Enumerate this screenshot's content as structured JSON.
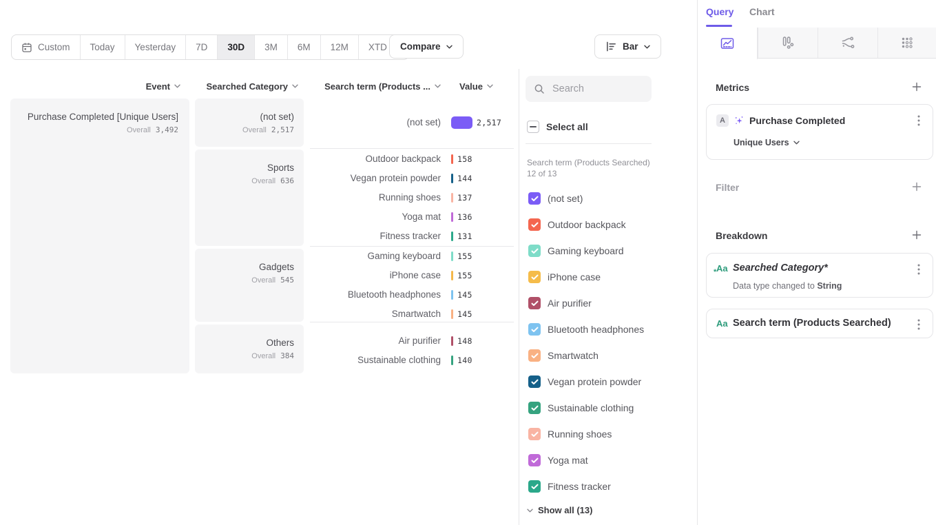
{
  "colors": {
    "accent": "#6e5be8",
    "panel_border": "#e5e5e8",
    "cell_bg": "#f5f5f6"
  },
  "toolbar": {
    "date_ranges": [
      "Custom",
      "Today",
      "Yesterday",
      "7D",
      "30D",
      "3M",
      "6M",
      "12M",
      "XTD"
    ],
    "selected_range": "30D",
    "compare_label": "Compare",
    "chart_type_label": "Bar"
  },
  "table": {
    "columns": [
      "Event",
      "Searched Category",
      "Search term (Products ...",
      "Value"
    ],
    "overall_label": "Overall",
    "event": {
      "name": "Purchase Completed [Unique Users]",
      "overall": "3,492"
    },
    "groups": [
      {
        "name": "(not set)",
        "overall": "2,517",
        "rows": [
          {
            "term": "(not set)",
            "value": "2,517",
            "color": "#7b5cf6",
            "wide": true
          }
        ]
      },
      {
        "name": "Sports",
        "overall": "636",
        "rows": [
          {
            "term": "Outdoor backpack",
            "value": "158",
            "color": "#f4664f"
          },
          {
            "term": "Vegan protein powder",
            "value": "144",
            "color": "#156089"
          },
          {
            "term": "Running shoes",
            "value": "137",
            "color": "#f9b4a3"
          },
          {
            "term": "Yoga mat",
            "value": "136",
            "color": "#c06ad8"
          },
          {
            "term": "Fitness tracker",
            "value": "131",
            "color": "#2ba88a"
          }
        ]
      },
      {
        "name": "Gadgets",
        "overall": "545",
        "rows": [
          {
            "term": "Gaming keyboard",
            "value": "155",
            "color": "#7edcc8"
          },
          {
            "term": "iPhone case",
            "value": "155",
            "color": "#f5b84a"
          },
          {
            "term": "Bluetooth headphones",
            "value": "145",
            "color": "#7ec3f0"
          },
          {
            "term": "Smartwatch",
            "value": "145",
            "color": "#f9b183"
          }
        ]
      },
      {
        "name": "Others",
        "overall": "384",
        "rows": [
          {
            "term": "Air purifier",
            "value": "148",
            "color": "#b05068"
          },
          {
            "term": "Sustainable clothing",
            "value": "140",
            "color": "#35a37f"
          }
        ]
      }
    ]
  },
  "filter_panel": {
    "search_placeholder": "Search",
    "select_all_label": "Select all",
    "group_label": "Search term (Products Searched) 12 of 13",
    "items": [
      {
        "label": "(not set)",
        "color": "#7b5cf6"
      },
      {
        "label": "Outdoor backpack",
        "color": "#f4664f"
      },
      {
        "label": "Gaming keyboard",
        "color": "#7edcc8"
      },
      {
        "label": "iPhone case",
        "color": "#f5bc4a"
      },
      {
        "label": "Air purifier",
        "color": "#b05068"
      },
      {
        "label": "Bluetooth headphones",
        "color": "#7ec3f0"
      },
      {
        "label": "Smartwatch",
        "color": "#f9b183"
      },
      {
        "label": "Vegan protein powder",
        "color": "#156089"
      },
      {
        "label": "Sustainable clothing",
        "color": "#35a37f"
      },
      {
        "label": "Running shoes",
        "color": "#f9b4a3"
      },
      {
        "label": "Yoga mat",
        "color": "#c06ad8"
      },
      {
        "label": "Fitness tracker",
        "color": "#2ba88a"
      }
    ],
    "show_all_label": "Show all (13)"
  },
  "query_panel": {
    "tabs": {
      "query": "Query",
      "chart": "Chart"
    },
    "metrics": {
      "heading": "Metrics",
      "badge": "A",
      "event_name": "Purchase Completed",
      "aggregation": "Unique Users"
    },
    "filter_heading": "Filter",
    "breakdown": {
      "heading": "Breakdown",
      "icon_label": "Aa",
      "items": [
        {
          "label": "Searched Category*",
          "note_prefix": "Data type changed to ",
          "note_value": "String"
        },
        {
          "label": "Search term (Products Searched)"
        }
      ]
    }
  }
}
